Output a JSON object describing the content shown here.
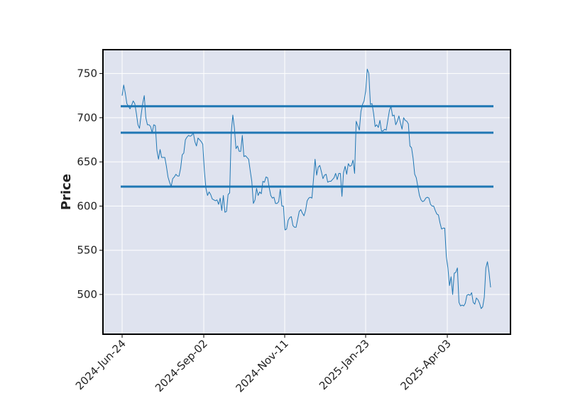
{
  "chart_data": {
    "type": "line",
    "title": "",
    "xlabel": "",
    "ylabel": "Price",
    "ylim": [
      455,
      777
    ],
    "yticks": [
      500,
      550,
      600,
      650,
      700,
      750
    ],
    "xticks": [
      "2024-Jun-24",
      "2024-Sep-02",
      "2024-Nov-11",
      "2025-Jan-23",
      "2025-Apr-03"
    ],
    "grid": true,
    "legend": "none",
    "colors": {
      "plot_background": "#dfe3ef",
      "grid": "#ffffff",
      "line": "#1f77b4",
      "levels": "#1f77b4",
      "frame": "#000000"
    },
    "level_lines": [
      713,
      683,
      622
    ],
    "series": [
      {
        "values": [
          725,
          737,
          728,
          716,
          713,
          710,
          714,
          719,
          716,
          705,
          692,
          688,
          703,
          716,
          725,
          700,
          692,
          692,
          690,
          683,
          692,
          691,
          663,
          653,
          664,
          655,
          655,
          655,
          645,
          633,
          627,
          622,
          631,
          633,
          636,
          634,
          634,
          643,
          658,
          660,
          675,
          678,
          680,
          679,
          680,
          683,
          673,
          668,
          677,
          675,
          673,
          670,
          640,
          620,
          612,
          616,
          613,
          608,
          607,
          606,
          607,
          602,
          609,
          595,
          612,
          593,
          594,
          613,
          615,
          683,
          703,
          688,
          665,
          668,
          662,
          662,
          680,
          656,
          657,
          655,
          653,
          640,
          628,
          603,
          607,
          620,
          612,
          616,
          614,
          628,
          627,
          633,
          632,
          621,
          612,
          609,
          610,
          603,
          603,
          605,
          619,
          600,
          600,
          573,
          574,
          584,
          587,
          588,
          578,
          576,
          576,
          585,
          594,
          596,
          592,
          589,
          595,
          606,
          609,
          610,
          609,
          630,
          653,
          635,
          644,
          646,
          639,
          631,
          635,
          636,
          627,
          628,
          628,
          630,
          632,
          637,
          630,
          637,
          637,
          611,
          638,
          645,
          636,
          648,
          645,
          646,
          652,
          637,
          696,
          691,
          686,
          707,
          715,
          719,
          730,
          755,
          750,
          715,
          716,
          705,
          690,
          692,
          689,
          697,
          685,
          685,
          687,
          686,
          697,
          708,
          713,
          702,
          703,
          692,
          696,
          702,
          694,
          687,
          700,
          697,
          696,
          693,
          668,
          666,
          654,
          636,
          632,
          622,
          612,
          607,
          605,
          606,
          609,
          610,
          609,
          602,
          600,
          600,
          595,
          591,
          590,
          581,
          574,
          575,
          575,
          543,
          530,
          510,
          520,
          500,
          524,
          525,
          530,
          491,
          487,
          488,
          487,
          490,
          499,
          500,
          499,
          502,
          491,
          489,
          496,
          494,
          490,
          484,
          486,
          497,
          530,
          537,
          525,
          508
        ]
      }
    ]
  }
}
